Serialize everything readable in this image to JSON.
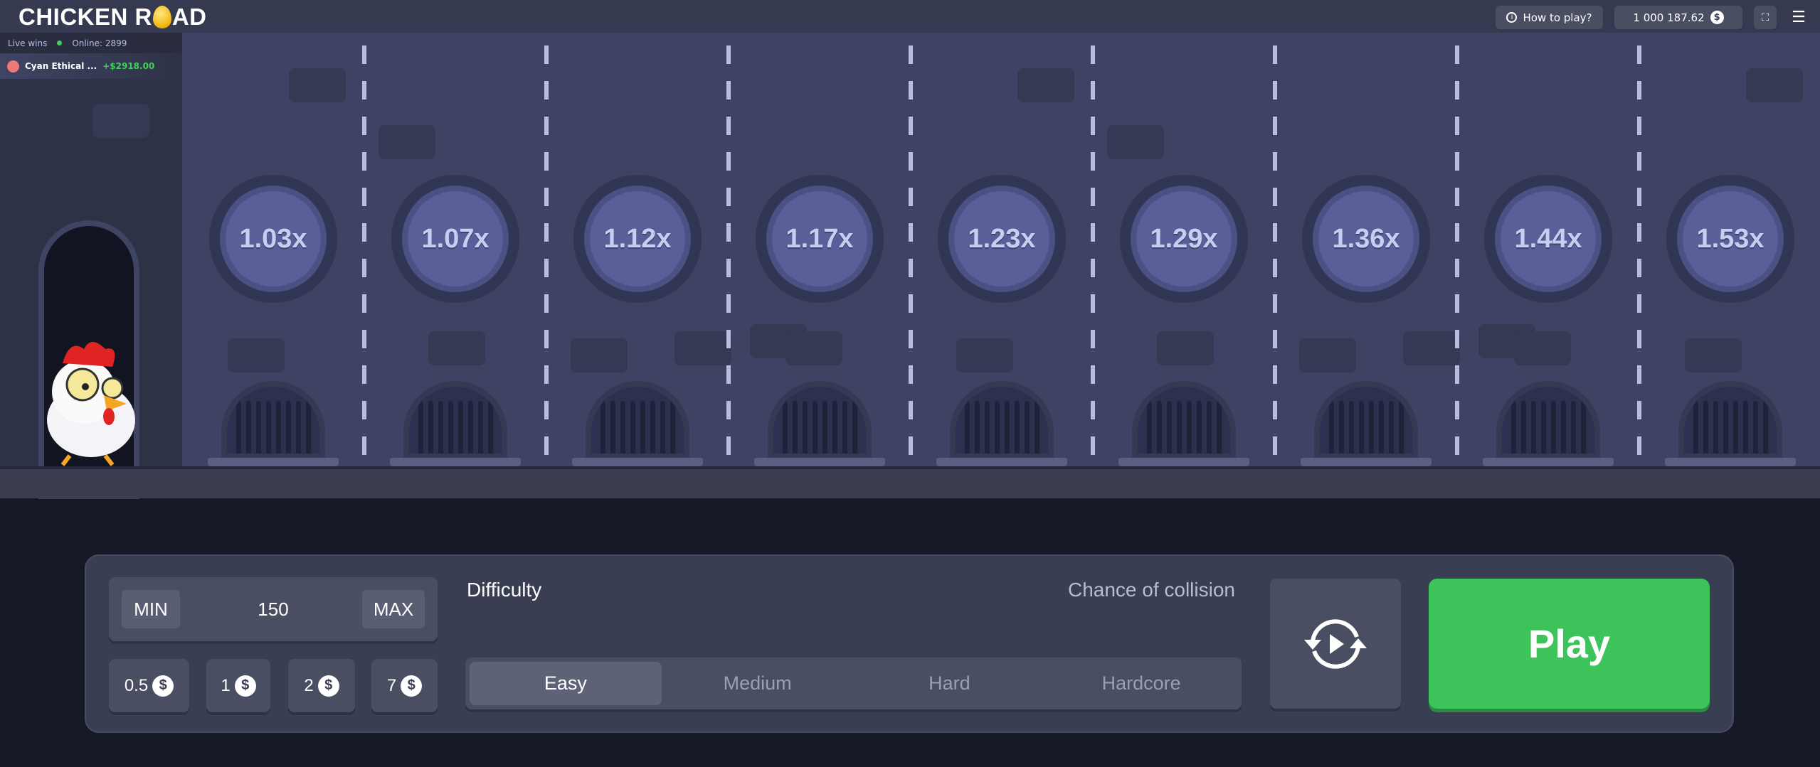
{
  "header": {
    "logo": "CHICKEN ROAD",
    "how_to_play": "How to play?",
    "balance": "1 000 187.62",
    "currency_icon": "dollar-coin-icon"
  },
  "live": {
    "label": "Live wins",
    "online": "Online: 2899",
    "wins": [
      {
        "name": "Cyan Ethical ...",
        "amount": "+$2918.00"
      }
    ]
  },
  "multipliers": [
    "1.03x",
    "1.07x",
    "1.12x",
    "1.17x",
    "1.23x",
    "1.29x",
    "1.36x",
    "1.44x",
    "1.53x"
  ],
  "bet": {
    "min_label": "MIN",
    "max_label": "MAX",
    "value": "150",
    "chips": [
      "0.5",
      "1",
      "2",
      "7"
    ]
  },
  "difficulty": {
    "label": "Difficulty",
    "chance_label": "Chance of collision",
    "options": [
      "Easy",
      "Medium",
      "Hard",
      "Hardcore"
    ],
    "selected": "Easy"
  },
  "play_label": "Play",
  "colors": {
    "play": "#3cc45a",
    "road": "#3e4363",
    "win_amount": "#3fd15a"
  }
}
